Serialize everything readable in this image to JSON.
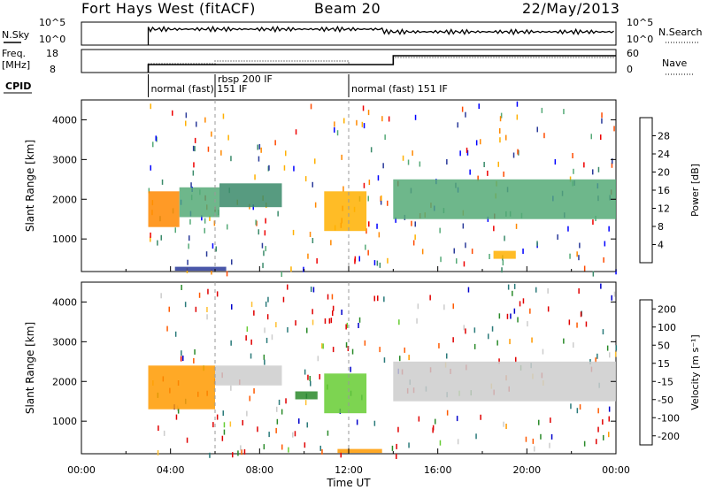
{
  "header": {
    "title": "Fort Hays West (fitACF)",
    "beam": "Beam 20",
    "date": "22/May/2013"
  },
  "nsky_panel": {
    "left_label": "N.Sky",
    "left_ticks": [
      "10^5",
      "10^0"
    ],
    "right_ticks": [
      "10^5",
      "10^0"
    ],
    "right_label": "N.Search"
  },
  "freq_panel": {
    "left_label_1": "Freq.",
    "left_label_2": "[MHz]",
    "left_ticks": [
      "18",
      "8"
    ],
    "right_ticks": [
      "60",
      "0"
    ],
    "right_label": "Nave"
  },
  "cpid": {
    "label": "CPID",
    "segments": [
      {
        "time": "03:00",
        "text": "normal (fast) 151 IF"
      },
      {
        "time": "06:00",
        "text": "rbsp 200 IF"
      },
      {
        "time": "12:00",
        "text": "normal (fast) 151 IF"
      }
    ]
  },
  "colors": {
    "power_scale": [
      "#0000ff",
      "#2a3a9a",
      "#3a8a6a",
      "#55aa77",
      "#ffb000",
      "#ff8800",
      "#ff4a00",
      "#ee0000"
    ],
    "velocity_scale": [
      "#e00000",
      "#ff5a00",
      "#ff9a00",
      "#ffc030",
      "#cccccc",
      "#cccccc",
      "#66cc33",
      "#2a8a2a",
      "#2a7a7a",
      "#0000cc"
    ]
  },
  "chart_data": [
    {
      "type": "heatmap",
      "panel": "power",
      "ylabel": "Slant Range [km]",
      "y_ticks": [
        "1000",
        "2000",
        "3000",
        "4000"
      ],
      "ylim": [
        180,
        4500
      ],
      "xlim": [
        "00:00",
        "24:00"
      ],
      "colorbar": {
        "label": "Power [dB]",
        "ticks": [
          "4",
          "8",
          "12",
          "16",
          "20",
          "24",
          "28"
        ],
        "range": [
          0,
          32
        ]
      },
      "regions": [
        {
          "t0": 3.0,
          "t1": 4.4,
          "r0": 1300,
          "r1": 2200,
          "value": 22
        },
        {
          "t0": 4.4,
          "t1": 6.2,
          "r0": 1550,
          "r1": 2300,
          "value": 13
        },
        {
          "t0": 6.2,
          "t1": 9.0,
          "r0": 1800,
          "r1": 2400,
          "value": 8
        },
        {
          "t0": 10.9,
          "t1": 12.8,
          "r0": 1200,
          "r1": 2200,
          "value": 16
        },
        {
          "t0": 14.0,
          "t1": 24.0,
          "r0": 1500,
          "r1": 2500,
          "value": 15
        },
        {
          "t0": 18.5,
          "t1": 19.5,
          "r0": 500,
          "r1": 700,
          "value": 17
        },
        {
          "t0": 4.2,
          "t1": 6.5,
          "r0": 200,
          "r1": 300,
          "value": 5
        }
      ]
    },
    {
      "type": "heatmap",
      "panel": "velocity",
      "ylabel": "Slant Range [km]",
      "y_ticks": [
        "1000",
        "2000",
        "3000",
        "4000"
      ],
      "ylim": [
        180,
        4500
      ],
      "xlabel": "Time UT",
      "x_ticks": [
        "00:00",
        "04:00",
        "08:00",
        "12:00",
        "16:00",
        "20:00",
        "00:00"
      ],
      "xlim": [
        "00:00",
        "24:00"
      ],
      "colorbar": {
        "label": "Velocity [m s⁻¹]",
        "ticks": [
          "200",
          "100",
          "50",
          "15",
          "-15",
          "-50",
          "-100",
          "-200"
        ],
        "range": [
          -250,
          250
        ]
      },
      "regions": [
        {
          "t0": 3.0,
          "t1": 6.0,
          "r0": 1300,
          "r1": 2400,
          "value": -40
        },
        {
          "t0": 6.0,
          "t1": 9.0,
          "r0": 1900,
          "r1": 2400,
          "value": 0
        },
        {
          "t0": 9.6,
          "t1": 10.6,
          "r0": 1550,
          "r1": 1750,
          "value": 60
        },
        {
          "t0": 10.9,
          "t1": 12.8,
          "r0": 1200,
          "r1": 2200,
          "value": 40
        },
        {
          "t0": 14.0,
          "t1": 24.0,
          "r0": 1500,
          "r1": 2500,
          "value": 0
        },
        {
          "t0": 11.5,
          "t1": 13.5,
          "r0": 200,
          "r1": 300,
          "value": -40
        }
      ]
    }
  ]
}
